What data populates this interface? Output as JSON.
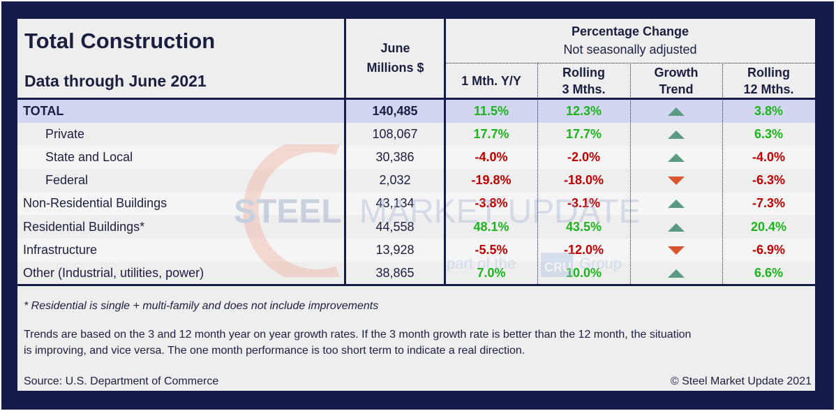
{
  "title": "Total Construction",
  "subtitle": "Data through June 2021",
  "col_amount": {
    "line1": "June",
    "line2": "Millions $"
  },
  "pct_header": {
    "line1": "Percentage Change",
    "line2": "Not seasonally adjusted"
  },
  "columns": [
    {
      "line1": "1 Mth. Y/Y",
      "line2": ""
    },
    {
      "line1": "Rolling",
      "line2": "3 Mths."
    },
    {
      "line1": "Growth",
      "line2": "Trend"
    },
    {
      "line1": "Rolling",
      "line2": "12 Mths."
    }
  ],
  "rows": [
    {
      "label": "TOTAL",
      "amount": "140,485",
      "m1": "11.5%",
      "m3": "12.3%",
      "trend": "up",
      "m12": "3.8%"
    },
    {
      "label": "Private",
      "amount": "108,067",
      "m1": "17.7%",
      "m3": "17.7%",
      "trend": "up",
      "m12": "6.3%"
    },
    {
      "label": "State and Local",
      "amount": "30,386",
      "m1": "-4.0%",
      "m3": "-2.0%",
      "trend": "up",
      "m12": "-4.0%"
    },
    {
      "label": "Federal",
      "amount": "2,032",
      "m1": "-19.8%",
      "m3": "-18.0%",
      "trend": "down",
      "m12": "-6.3%"
    },
    {
      "label": "Non-Residential Buildings",
      "amount": "43,134",
      "m1": "-3.8%",
      "m3": "-3.1%",
      "trend": "up",
      "m12": "-7.3%"
    },
    {
      "label": "Residential Buildings*",
      "amount": "44,558",
      "m1": "48.1%",
      "m3": "43.5%",
      "trend": "up",
      "m12": "20.4%"
    },
    {
      "label": "Infrastructure",
      "amount": "13,928",
      "m1": "-5.5%",
      "m3": "-12.0%",
      "trend": "down",
      "m12": "-6.9%"
    },
    {
      "label": "Other (Industrial, utilities, power)",
      "amount": "38,865",
      "m1": "7.0%",
      "m3": "10.0%",
      "trend": "up",
      "m12": "6.6%"
    }
  ],
  "footnote": "* Residential is single + multi-family and does not include improvements",
  "trend_note_1": "Trends are based on the 3 and 12 month year on year growth rates. If the 3 month growth rate is better than the 12 month, the situation",
  "trend_note_2": "is improving, and vice versa. The one month performance is too short term to indicate a real direction.",
  "source": "Source: U.S. Department of Commerce",
  "copyright": "© Steel Market Update 2021",
  "watermark": {
    "text1": "STEEL",
    "text2": "MARKET UPDATE",
    "text3": "part of the",
    "text4": "CRU",
    "text5": "Group"
  },
  "colors": {
    "frame": "#161c4a",
    "positive": "#1cb41c",
    "negative": "#c00000",
    "trend_up": "#5a9a80",
    "trend_down": "#d9542c",
    "total_row": "#d3d6f1"
  }
}
